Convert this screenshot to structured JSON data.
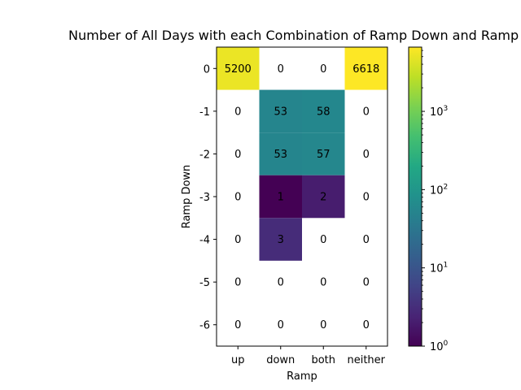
{
  "chart_data": {
    "type": "heatmap",
    "title": "Number of All Days with each Combination of Ramp Down and Ramp",
    "xlabel": "Ramp",
    "ylabel": "Ramp Down",
    "x_categories": [
      "up",
      "down",
      "both",
      "neither"
    ],
    "y_categories": [
      "0",
      "-1",
      "-2",
      "-3",
      "-4",
      "-5",
      "-6"
    ],
    "values": [
      [
        5200,
        0,
        0,
        6618
      ],
      [
        0,
        53,
        58,
        0
      ],
      [
        0,
        53,
        57,
        0
      ],
      [
        0,
        1,
        2,
        0
      ],
      [
        0,
        3,
        0,
        0
      ],
      [
        0,
        0,
        0,
        0
      ],
      [
        0,
        0,
        0,
        0
      ]
    ],
    "colorbar": {
      "scale": "log",
      "colormap": "viridis",
      "range": [
        1,
        6618
      ],
      "ticks": [
        {
          "base": "10",
          "exp": "0"
        },
        {
          "base": "10",
          "exp": "1"
        },
        {
          "base": "10",
          "exp": "2"
        },
        {
          "base": "10",
          "exp": "3"
        }
      ]
    },
    "zero_cells": "blank"
  }
}
